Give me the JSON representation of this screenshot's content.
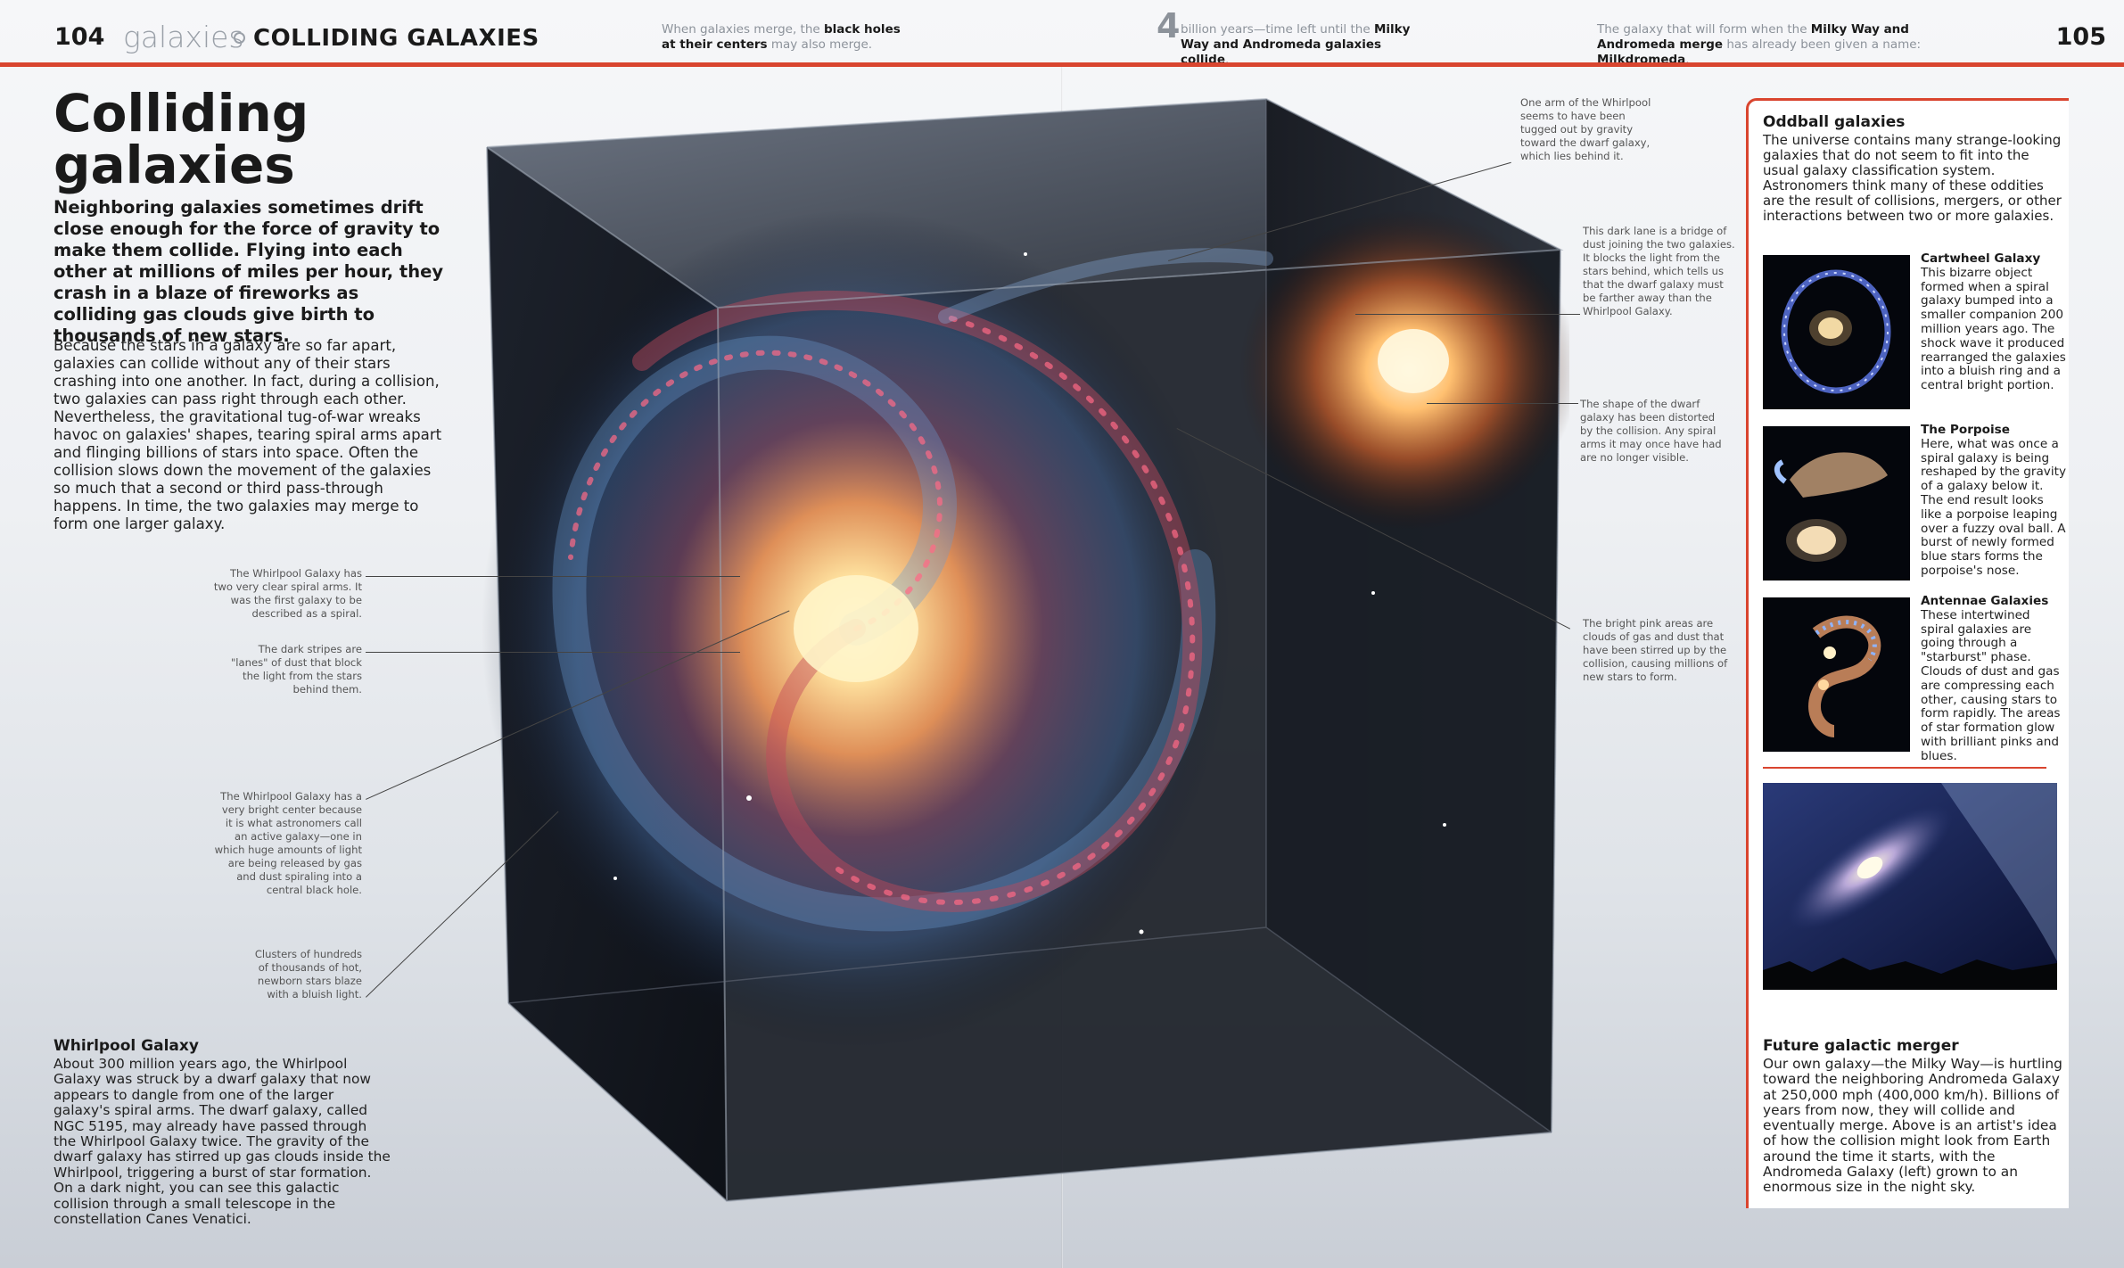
{
  "header": {
    "page_left": "104",
    "section": "galaxies",
    "section_sub": "COLLIDING GALAXIES",
    "fact1_html": "When galaxies merge, the <b>black holes at their centers</b> may also merge.",
    "fact2_number": "4",
    "fact2_html": "billion years—time left until the <b>Milky Way and Andromeda galaxies collide</b>.",
    "fact3_html": "The galaxy that will form when the <b>Milky Way and Andromeda merge</b> has already been given a name: <b>Milkdromeda</b>.",
    "page_right": "105"
  },
  "main": {
    "title_line1": "Colliding",
    "title_line2": "galaxies",
    "intro": "Neighboring galaxies sometimes drift close enough for the force of gravity to make them collide. Flying into each other at millions of miles per hour, they crash in a blaze of fireworks as colliding gas clouds give birth to thousands of new stars.",
    "body": "Because the stars in a galaxy are so far apart, galaxies can collide without any of their stars crashing into one another. In fact, during a collision, two galaxies can pass right through each other. Nevertheless, the gravitational tug-of-war wreaks havoc on galaxies' shapes, tearing spiral arms apart and flinging billions of stars into space. Often the collision slows down the movement of the galaxies so much that a second or third pass-through happens. In time, the two galaxies may merge to form one larger galaxy."
  },
  "captions": {
    "left1": "The Whirlpool Galaxy has two very clear spiral arms. It was the first galaxy to be described as a spiral.",
    "left2": "The dark stripes are \"lanes\" of dust that block the light from the stars behind them.",
    "left3": "The Whirlpool Galaxy has a very bright center because it is what astronomers call an active galaxy—one in which huge amounts of light are being released by gas and dust spiraling into a central black hole.",
    "left4": "Clusters of hundreds of thousands of hot, newborn stars blaze with a bluish light.",
    "right1": "One arm of the Whirlpool seems to have been tugged out by gravity toward the dwarf galaxy, which lies behind it.",
    "right2": "This dark lane is a bridge of dust joining the two galaxies. It blocks the light from the stars behind, which tells us that the dwarf galaxy must be farther away than the Whirlpool Galaxy.",
    "right3": "The shape of the dwarf galaxy has been distorted by the collision. Any spiral arms it may once have had are no longer visible.",
    "right4": "The bright pink areas are clouds of gas and dust that have been stirred up by the collision, causing millions of new stars to form."
  },
  "whirlpool": {
    "heading": "Whirlpool Galaxy",
    "body": "About 300 million years ago, the Whirlpool Galaxy was struck by a dwarf galaxy that now appears to dangle from one of the larger galaxy's spiral arms. The dwarf galaxy, called NGC 5195, may already have passed through the Whirlpool Galaxy twice. The gravity of the dwarf galaxy has stirred up gas clouds inside the Whirlpool, triggering a burst of star formation. On a dark night, you can see this galactic collision through a small telescope in the constellation Canes Venatici."
  },
  "sidebar": {
    "heading": "Oddball galaxies",
    "intro": "The universe contains many strange-looking galaxies that do not seem to fit into the usual galaxy classification system. Astronomers think many of these oddities are the result of collisions, mergers, or other interactions between two or more galaxies.",
    "items": [
      {
        "title": "Cartwheel Galaxy",
        "text": "This bizarre object formed when a spiral galaxy bumped into a smaller companion 200 million years ago. The shock wave it produced rearranged the galaxies into a bluish ring and a central bright portion."
      },
      {
        "title": "The Porpoise",
        "text": "Here, what was once a spiral galaxy is being reshaped by the gravity of a galaxy below it. The end result looks like a porpoise leaping over a fuzzy oval ball. A burst of newly formed blue stars forms the porpoise's nose."
      },
      {
        "title": "Antennae Galaxies",
        "text": "These intertwined spiral galaxies are going through a \"starburst\" phase. Clouds of dust and gas are compressing each other, causing stars to form rapidly. The areas of star formation glow with brilliant pinks and blues."
      }
    ],
    "merger_heading": "Future galactic merger",
    "merger_body": "Our own galaxy—the Milky Way—is hurtling toward the neighboring Andromeda Galaxy at 250,000 mph (400,000 km/h). Billions of years from now, they will collide and eventually merge. Above is an artist's idea of how the collision might look from Earth around the time it starts, with the Andromeda Galaxy (left) grown to an enormous size in the night sky."
  },
  "colors": {
    "accent": "#d9452f",
    "text": "#1a1a1a",
    "muted": "#8c929a"
  }
}
